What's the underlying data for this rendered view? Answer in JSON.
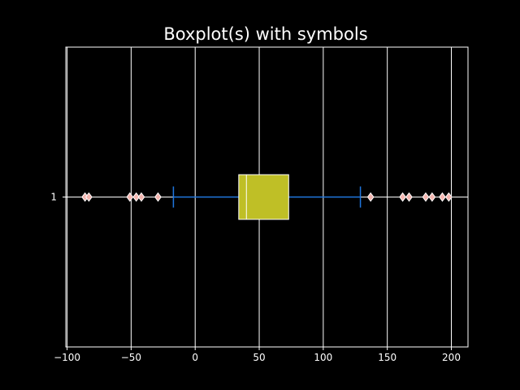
{
  "chart_data": {
    "type": "boxplot",
    "orientation": "horizontal",
    "title": "Boxplot(s) with symbols",
    "xlabel": "",
    "ylabel": "",
    "xlim": [
      -101,
      213
    ],
    "xticks": [
      -100,
      -50,
      0,
      50,
      100,
      150,
      200
    ],
    "xtick_labels": [
      "−100",
      "−50",
      "0",
      "50",
      "100",
      "150",
      "200"
    ],
    "categories": [
      "1"
    ],
    "grid": true,
    "boxes": [
      {
        "category": "1",
        "q1": 34,
        "median": 40,
        "q3": 73,
        "whisker_low": -17,
        "whisker_high": 129,
        "fliers": [
          -86,
          -83,
          -51,
          -46,
          -42,
          -29,
          137,
          162,
          167,
          180,
          185,
          193,
          198
        ]
      }
    ],
    "colors": {
      "background": "#000000",
      "axes": "#ffffff",
      "grid": "#ffffff",
      "box_fill": "#bfbf26",
      "box_edge": "#ffffff",
      "median": "#ffffff",
      "whisker": "#1f77e0",
      "flier_fill": "#f4b6b0",
      "flier_edge": "#ffffff"
    },
    "flier_marker": "diamond"
  }
}
